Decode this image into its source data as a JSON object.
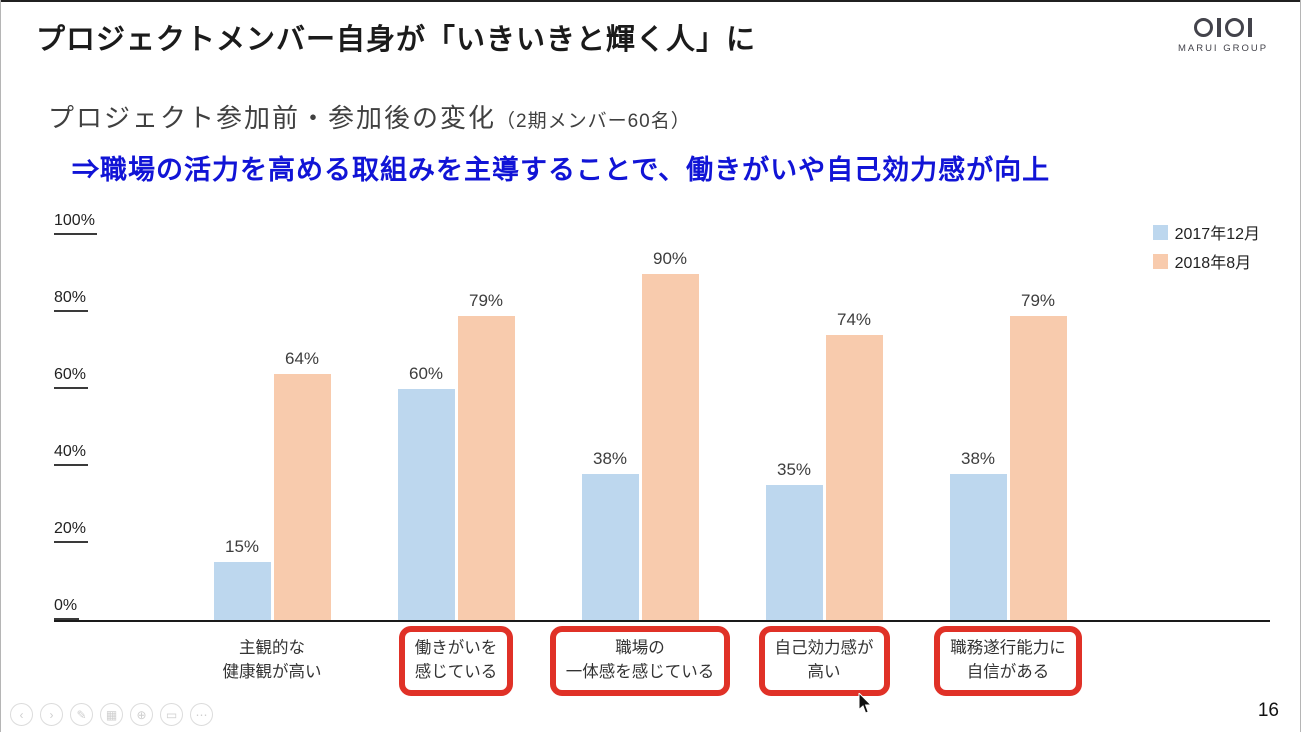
{
  "header": {
    "title": "プロジェクトメンバー自身が「いきいきと輝く人」に",
    "logo_brand": "MARUI GROUP"
  },
  "subtitle": {
    "main": "プロジェクト参加前・参加後の変化",
    "note": "（2期メンバー60名）"
  },
  "callout": "⇒職場の活力を高める取組みを主導することで、働きがいや自己効力感が向上",
  "colors": {
    "callout_blue": "#1114d6",
    "highlight_red": "#e03127"
  },
  "chart_data": {
    "type": "bar",
    "title": "プロジェクト参加前・参加後の変化（2期メンバー60名）",
    "categories": [
      {
        "lines": [
          "主観的な",
          "健康観が高い"
        ],
        "highlighted": false
      },
      {
        "lines": [
          "働きがいを",
          "感じている"
        ],
        "highlighted": true
      },
      {
        "lines": [
          "職場の",
          "一体感を感じている"
        ],
        "highlighted": true
      },
      {
        "lines": [
          "自己効力感が",
          "高い"
        ],
        "highlighted": true
      },
      {
        "lines": [
          "職務遂行能力に",
          "自信がある"
        ],
        "highlighted": true
      }
    ],
    "series": [
      {
        "name": "2017年12月",
        "color": "#bdd7ee",
        "values": [
          15,
          60,
          38,
          35,
          38
        ]
      },
      {
        "name": "2018年8月",
        "color": "#f8cbad",
        "values": [
          64,
          79,
          90,
          74,
          79
        ]
      }
    ],
    "y_ticks": [
      100,
      80,
      60,
      40,
      20,
      0
    ],
    "ylim": [
      0,
      100
    ],
    "value_suffix": "%",
    "grid": false,
    "legend_position": "top-right",
    "highlight_color": "#e03127"
  },
  "toolbar": {
    "buttons": [
      {
        "name": "previous-slide",
        "glyph": "‹"
      },
      {
        "name": "next-slide",
        "glyph": "›"
      },
      {
        "name": "pen",
        "glyph": "✎"
      },
      {
        "name": "see-all-slides",
        "glyph": "▦"
      },
      {
        "name": "zoom",
        "glyph": "⊕"
      },
      {
        "name": "captions",
        "glyph": "▭"
      },
      {
        "name": "more-options",
        "glyph": "⋯"
      }
    ]
  },
  "page": {
    "number": "16"
  }
}
